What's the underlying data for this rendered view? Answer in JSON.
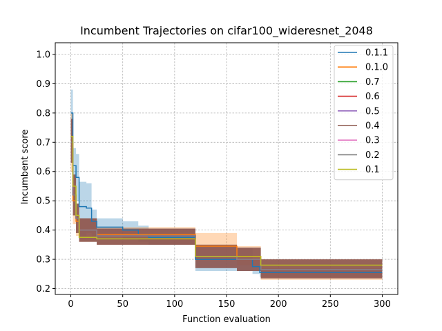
{
  "chart_data": {
    "type": "line",
    "title": "Incumbent Trajectories on cifar100_wideresnet_2048",
    "xlabel": "Function evaluation",
    "ylabel": "Incumbent score",
    "xlim": [
      -15,
      315
    ],
    "ylim": [
      0.18,
      1.04
    ],
    "xticks": [
      0,
      50,
      100,
      150,
      200,
      250,
      300
    ],
    "yticks": [
      0.2,
      0.3,
      0.4,
      0.5,
      0.6,
      0.7,
      0.8,
      0.9,
      1.0
    ],
    "xtick_labels": [
      "0",
      "50",
      "100",
      "150",
      "200",
      "250",
      "300"
    ],
    "ytick_labels": [
      "0.2",
      "0.3",
      "0.4",
      "0.5",
      "0.6",
      "0.7",
      "0.8",
      "0.9",
      "1.0"
    ],
    "grid": true,
    "legend_position": "top-right",
    "series": [
      {
        "name": "0.1.1",
        "color": "#1f77b4",
        "draw": "step",
        "band_opacity": 0.3,
        "x": [
          0,
          2,
          5,
          8,
          15,
          20,
          25,
          50,
          65,
          75,
          120,
          160,
          175,
          182,
          300
        ],
        "y": [
          0.8,
          0.62,
          0.58,
          0.48,
          0.475,
          0.43,
          0.41,
          0.4,
          0.385,
          0.375,
          0.3,
          0.3,
          0.275,
          0.255,
          0.255
        ],
        "lower": [
          0.72,
          0.56,
          0.5,
          0.38,
          0.39,
          0.38,
          0.38,
          0.37,
          0.36,
          0.35,
          0.26,
          0.26,
          0.25,
          0.24,
          0.24
        ],
        "upper": [
          0.88,
          0.68,
          0.66,
          0.565,
          0.56,
          0.47,
          0.44,
          0.43,
          0.415,
          0.405,
          0.34,
          0.34,
          0.3,
          0.27,
          0.27
        ]
      },
      {
        "name": "0.1.0",
        "color": "#ff7f0e",
        "draw": "step",
        "band_opacity": 0.3,
        "x": [
          0,
          2,
          5,
          8,
          25,
          120,
          160,
          183,
          300
        ],
        "y": [
          0.7,
          0.5,
          0.43,
          0.4,
          0.385,
          0.345,
          0.31,
          0.265,
          0.265
        ],
        "lower": [
          0.6,
          0.42,
          0.38,
          0.36,
          0.35,
          0.3,
          0.28,
          0.23,
          0.23
        ],
        "upper": [
          0.8,
          0.58,
          0.48,
          0.44,
          0.41,
          0.39,
          0.345,
          0.3,
          0.3
        ]
      },
      {
        "name": "0.7",
        "color": "#2ca02c",
        "draw": "step",
        "band_opacity": 0.3,
        "x": [
          0,
          2,
          5,
          8,
          25,
          120,
          160,
          183,
          300
        ],
        "y": [
          0.7,
          0.52,
          0.44,
          0.4,
          0.38,
          0.31,
          0.3,
          0.265,
          0.265
        ],
        "lower": [
          0.63,
          0.45,
          0.39,
          0.36,
          0.35,
          0.27,
          0.26,
          0.235,
          0.235
        ],
        "upper": [
          0.78,
          0.59,
          0.49,
          0.44,
          0.405,
          0.35,
          0.34,
          0.3,
          0.3
        ]
      },
      {
        "name": "0.6",
        "color": "#d62728",
        "draw": "step",
        "band_opacity": 0.3,
        "x": [
          0,
          2,
          5,
          8,
          25,
          120,
          160,
          183,
          300
        ],
        "y": [
          0.7,
          0.52,
          0.44,
          0.4,
          0.38,
          0.31,
          0.3,
          0.265,
          0.265
        ],
        "lower": [
          0.63,
          0.45,
          0.39,
          0.36,
          0.35,
          0.27,
          0.26,
          0.235,
          0.235
        ],
        "upper": [
          0.78,
          0.59,
          0.49,
          0.44,
          0.405,
          0.35,
          0.34,
          0.3,
          0.3
        ]
      },
      {
        "name": "0.5",
        "color": "#9467bd",
        "draw": "step",
        "band_opacity": 0.3,
        "x": [
          0,
          2,
          5,
          8,
          25,
          120,
          160,
          183,
          300
        ],
        "y": [
          0.7,
          0.52,
          0.44,
          0.4,
          0.38,
          0.31,
          0.3,
          0.265,
          0.265
        ],
        "lower": [
          0.63,
          0.45,
          0.39,
          0.36,
          0.35,
          0.27,
          0.26,
          0.235,
          0.235
        ],
        "upper": [
          0.78,
          0.59,
          0.49,
          0.44,
          0.405,
          0.35,
          0.34,
          0.3,
          0.3
        ]
      },
      {
        "name": "0.4",
        "color": "#8c564b",
        "draw": "step",
        "band_opacity": 0.75,
        "x": [
          0,
          2,
          5,
          8,
          25,
          120,
          160,
          183,
          300
        ],
        "y": [
          0.7,
          0.52,
          0.44,
          0.4,
          0.38,
          0.31,
          0.3,
          0.265,
          0.265
        ],
        "lower": [
          0.63,
          0.45,
          0.39,
          0.36,
          0.35,
          0.27,
          0.26,
          0.235,
          0.235
        ],
        "upper": [
          0.78,
          0.59,
          0.49,
          0.44,
          0.405,
          0.35,
          0.34,
          0.3,
          0.3
        ]
      },
      {
        "name": "0.3",
        "color": "#e377c2",
        "draw": "step",
        "band_opacity": 0.0,
        "x": [
          0,
          2,
          5,
          8,
          25,
          120,
          160,
          183,
          300
        ],
        "y": [
          0.7,
          0.52,
          0.44,
          0.4,
          0.38,
          0.31,
          0.3,
          0.265,
          0.265
        ],
        "lower": [
          0.7,
          0.52,
          0.44,
          0.4,
          0.38,
          0.31,
          0.3,
          0.265,
          0.265
        ],
        "upper": [
          0.7,
          0.52,
          0.44,
          0.4,
          0.38,
          0.31,
          0.3,
          0.265,
          0.265
        ]
      },
      {
        "name": "0.2",
        "color": "#7f7f7f",
        "draw": "step",
        "band_opacity": 0.0,
        "x": [
          0,
          2,
          5,
          8,
          25,
          120,
          160,
          183,
          300
        ],
        "y": [
          0.7,
          0.52,
          0.44,
          0.4,
          0.38,
          0.31,
          0.3,
          0.265,
          0.265
        ],
        "lower": [
          0.7,
          0.52,
          0.44,
          0.4,
          0.38,
          0.31,
          0.3,
          0.265,
          0.265
        ],
        "upper": [
          0.7,
          0.52,
          0.44,
          0.4,
          0.38,
          0.31,
          0.3,
          0.265,
          0.265
        ]
      },
      {
        "name": "0.1",
        "color": "#bcbd22",
        "draw": "step",
        "band_opacity": 0.0,
        "x": [
          0,
          2,
          5,
          8,
          25,
          120,
          183,
          300
        ],
        "y": [
          0.72,
          0.55,
          0.45,
          0.375,
          0.37,
          0.31,
          0.28,
          0.28
        ],
        "lower": [
          0.72,
          0.55,
          0.45,
          0.375,
          0.37,
          0.31,
          0.28,
          0.28
        ],
        "upper": [
          0.72,
          0.55,
          0.45,
          0.375,
          0.37,
          0.31,
          0.28,
          0.28
        ]
      }
    ]
  }
}
